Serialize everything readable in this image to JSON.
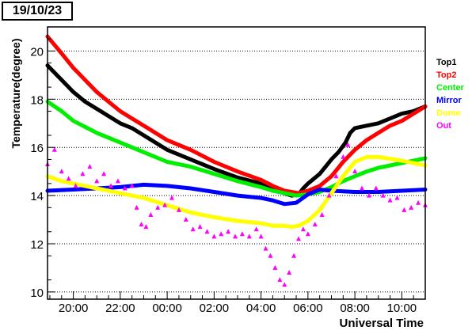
{
  "header": {
    "date_label": "19/10/23"
  },
  "chart_data": {
    "type": "scatter",
    "title": "",
    "xlabel": "Universal Time",
    "ylabel": "Temperature(degree)",
    "x_tick_labels": [
      "20:00",
      "22:00",
      "00:00",
      "02:00",
      "04:00",
      "06:00",
      "08:00",
      "10:00"
    ],
    "x_tick_hours": [
      20,
      22,
      24,
      26,
      28,
      30,
      32,
      34
    ],
    "xlim_hours": [
      18.9,
      35.0
    ],
    "ylim": [
      9.7,
      21.0
    ],
    "y_ticks": [
      10,
      12,
      14,
      16,
      18,
      20
    ],
    "grid": "horizontal dotted",
    "legend_placement": "right",
    "series": [
      {
        "name": "Top1",
        "color": "#000000",
        "x": [
          18.9,
          19.5,
          20.0,
          20.5,
          21.0,
          21.5,
          22.0,
          22.5,
          23.0,
          23.5,
          24.0,
          25.0,
          26.0,
          27.0,
          28.0,
          28.5,
          29.0,
          29.3,
          29.6,
          29.8,
          30.0,
          30.5,
          31.0,
          31.3,
          31.6,
          31.8,
          32.0,
          32.5,
          33.0,
          33.5,
          34.0,
          34.5,
          35.0
        ],
        "y": [
          19.4,
          18.8,
          18.3,
          17.9,
          17.6,
          17.3,
          17.0,
          16.8,
          16.5,
          16.2,
          15.9,
          15.5,
          15.1,
          14.75,
          14.5,
          14.3,
          14.1,
          14.0,
          14.05,
          14.3,
          14.5,
          14.9,
          15.5,
          15.8,
          16.2,
          16.6,
          16.8,
          16.9,
          17.0,
          17.2,
          17.4,
          17.5,
          17.7
        ]
      },
      {
        "name": "Top2",
        "color": "#ff0000",
        "x": [
          18.9,
          19.5,
          20.0,
          20.5,
          21.0,
          21.5,
          22.0,
          22.5,
          23.0,
          23.5,
          24.0,
          25.0,
          26.0,
          27.0,
          28.0,
          28.5,
          29.0,
          29.3,
          29.6,
          30.0,
          30.5,
          31.0,
          31.5,
          32.0,
          32.5,
          33.0,
          33.5,
          34.0,
          34.5,
          35.0
        ],
        "y": [
          20.6,
          19.9,
          19.3,
          18.8,
          18.3,
          17.9,
          17.5,
          17.2,
          16.9,
          16.6,
          16.3,
          15.9,
          15.4,
          15.0,
          14.65,
          14.4,
          14.2,
          14.15,
          14.1,
          14.2,
          14.4,
          14.8,
          15.4,
          15.9,
          16.3,
          16.6,
          16.9,
          17.1,
          17.4,
          17.7
        ]
      },
      {
        "name": "Center",
        "color": "#00ee00",
        "x": [
          18.9,
          19.5,
          20.0,
          21.0,
          22.0,
          23.0,
          24.0,
          25.0,
          26.0,
          27.0,
          28.0,
          28.5,
          29.0,
          29.5,
          30.0,
          30.5,
          31.0,
          31.5,
          32.0,
          32.5,
          33.0,
          34.0,
          35.0
        ],
        "y": [
          17.9,
          17.5,
          17.1,
          16.6,
          16.2,
          15.8,
          15.4,
          15.2,
          14.9,
          14.6,
          14.35,
          14.2,
          14.1,
          14.0,
          14.05,
          14.15,
          14.35,
          14.6,
          14.8,
          15.0,
          15.15,
          15.35,
          15.55
        ]
      },
      {
        "name": "Mirror",
        "color": "#0000ff",
        "x": [
          18.9,
          20.0,
          21.0,
          22.0,
          23.0,
          24.0,
          25.0,
          26.0,
          27.0,
          28.0,
          28.5,
          29.0,
          29.5,
          30.0,
          30.5,
          31.0,
          32.0,
          33.0,
          34.0,
          35.0
        ],
        "y": [
          14.2,
          14.25,
          14.3,
          14.35,
          14.45,
          14.4,
          14.3,
          14.15,
          14.0,
          13.9,
          13.8,
          13.65,
          13.7,
          14.05,
          14.25,
          14.2,
          14.15,
          14.15,
          14.2,
          14.25
        ]
      },
      {
        "name": "Dome",
        "color": "#ffff00",
        "x": [
          18.9,
          19.5,
          20.0,
          21.0,
          22.0,
          23.0,
          24.0,
          25.0,
          26.0,
          27.0,
          28.0,
          28.5,
          29.0,
          29.3,
          29.6,
          30.0,
          30.5,
          31.0,
          31.5,
          32.0,
          32.5,
          33.0,
          34.0,
          35.0
        ],
        "y": [
          14.8,
          14.6,
          14.5,
          14.3,
          14.1,
          13.9,
          13.6,
          13.3,
          13.1,
          12.95,
          12.85,
          12.75,
          12.75,
          12.7,
          12.75,
          12.95,
          13.4,
          14.1,
          14.8,
          15.4,
          15.6,
          15.6,
          15.45,
          15.25
        ]
      },
      {
        "name": "Out",
        "color": "#ff00ff",
        "marker": "triangle",
        "x": [
          18.9,
          19.2,
          19.5,
          19.8,
          20.1,
          20.4,
          20.7,
          21.0,
          21.3,
          21.6,
          21.9,
          22.2,
          22.5,
          22.7,
          22.9,
          23.1,
          23.3,
          23.6,
          23.9,
          24.2,
          24.5,
          24.8,
          25.1,
          25.4,
          25.7,
          26.0,
          26.3,
          26.6,
          26.9,
          27.2,
          27.5,
          27.8,
          28.0,
          28.2,
          28.4,
          28.6,
          28.8,
          29.0,
          29.2,
          29.4,
          29.6,
          29.8,
          30.0,
          30.3,
          30.6,
          30.9,
          31.2,
          31.5,
          31.7,
          32.0,
          32.3,
          32.6,
          32.9,
          33.2,
          33.5,
          33.8,
          34.1,
          34.4,
          34.7,
          35.0
        ],
        "y": [
          15.3,
          15.9,
          15.0,
          14.7,
          14.4,
          14.9,
          15.2,
          14.6,
          14.9,
          14.4,
          14.6,
          14.3,
          14.4,
          13.5,
          12.8,
          12.7,
          13.2,
          13.5,
          13.6,
          13.9,
          13.4,
          13.0,
          12.6,
          12.7,
          12.5,
          12.3,
          12.4,
          12.5,
          12.3,
          12.4,
          12.3,
          12.6,
          12.3,
          11.8,
          11.5,
          11.0,
          10.5,
          10.3,
          10.8,
          11.5,
          12.2,
          12.6,
          12.4,
          12.8,
          13.2,
          14.0,
          14.8,
          15.6,
          16.1,
          15.0,
          14.3,
          14.0,
          14.3,
          14.0,
          13.8,
          13.9,
          13.4,
          13.5,
          13.7,
          13.6
        ]
      }
    ]
  }
}
